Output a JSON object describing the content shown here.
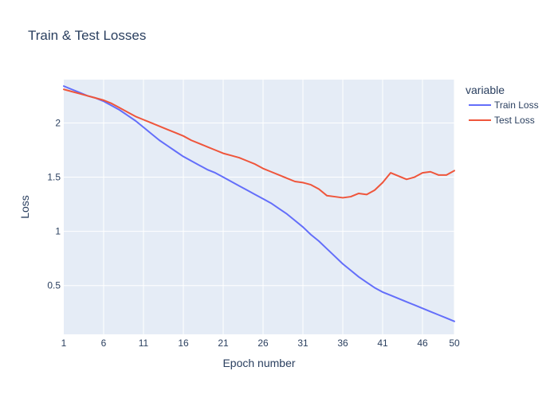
{
  "chart_data": {
    "type": "line",
    "title": "Train & Test Losses",
    "xlabel": "Epoch number",
    "ylabel": "Loss",
    "xlim": [
      1,
      50
    ],
    "ylim": [
      0.05,
      2.4
    ],
    "x_ticks": [
      1,
      6,
      11,
      16,
      21,
      26,
      31,
      36,
      41,
      46,
      50
    ],
    "y_ticks": [
      0.5,
      1,
      1.5,
      2
    ],
    "y_tick_labels": [
      "0.5",
      "1",
      "1.5",
      "2"
    ],
    "grid": true,
    "legend": {
      "title": "variable",
      "placement": "top-right"
    },
    "x": [
      1,
      2,
      3,
      4,
      5,
      6,
      7,
      8,
      9,
      10,
      11,
      12,
      13,
      14,
      15,
      16,
      17,
      18,
      19,
      20,
      21,
      22,
      23,
      24,
      25,
      26,
      27,
      28,
      29,
      30,
      31,
      32,
      33,
      34,
      35,
      36,
      37,
      38,
      39,
      40,
      41,
      42,
      43,
      44,
      45,
      46,
      47,
      48,
      49,
      50
    ],
    "series": [
      {
        "name": "Train Loss",
        "color": "#636efa",
        "values": [
          2.34,
          2.31,
          2.28,
          2.25,
          2.23,
          2.2,
          2.16,
          2.12,
          2.07,
          2.02,
          1.96,
          1.9,
          1.84,
          1.79,
          1.74,
          1.69,
          1.65,
          1.61,
          1.57,
          1.54,
          1.5,
          1.46,
          1.42,
          1.38,
          1.34,
          1.3,
          1.26,
          1.21,
          1.16,
          1.1,
          1.04,
          0.97,
          0.91,
          0.84,
          0.77,
          0.7,
          0.64,
          0.58,
          0.53,
          0.48,
          0.44,
          0.41,
          0.38,
          0.35,
          0.32,
          0.29,
          0.26,
          0.23,
          0.2,
          0.17
        ]
      },
      {
        "name": "Test Loss",
        "color": "#ef553b",
        "values": [
          2.31,
          2.29,
          2.27,
          2.25,
          2.23,
          2.21,
          2.18,
          2.14,
          2.1,
          2.06,
          2.03,
          2.0,
          1.97,
          1.94,
          1.91,
          1.88,
          1.84,
          1.81,
          1.78,
          1.75,
          1.72,
          1.7,
          1.68,
          1.65,
          1.62,
          1.58,
          1.55,
          1.52,
          1.49,
          1.46,
          1.45,
          1.43,
          1.39,
          1.33,
          1.32,
          1.31,
          1.32,
          1.35,
          1.34,
          1.38,
          1.45,
          1.54,
          1.51,
          1.48,
          1.5,
          1.54,
          1.55,
          1.52,
          1.52,
          1.56
        ]
      }
    ]
  }
}
